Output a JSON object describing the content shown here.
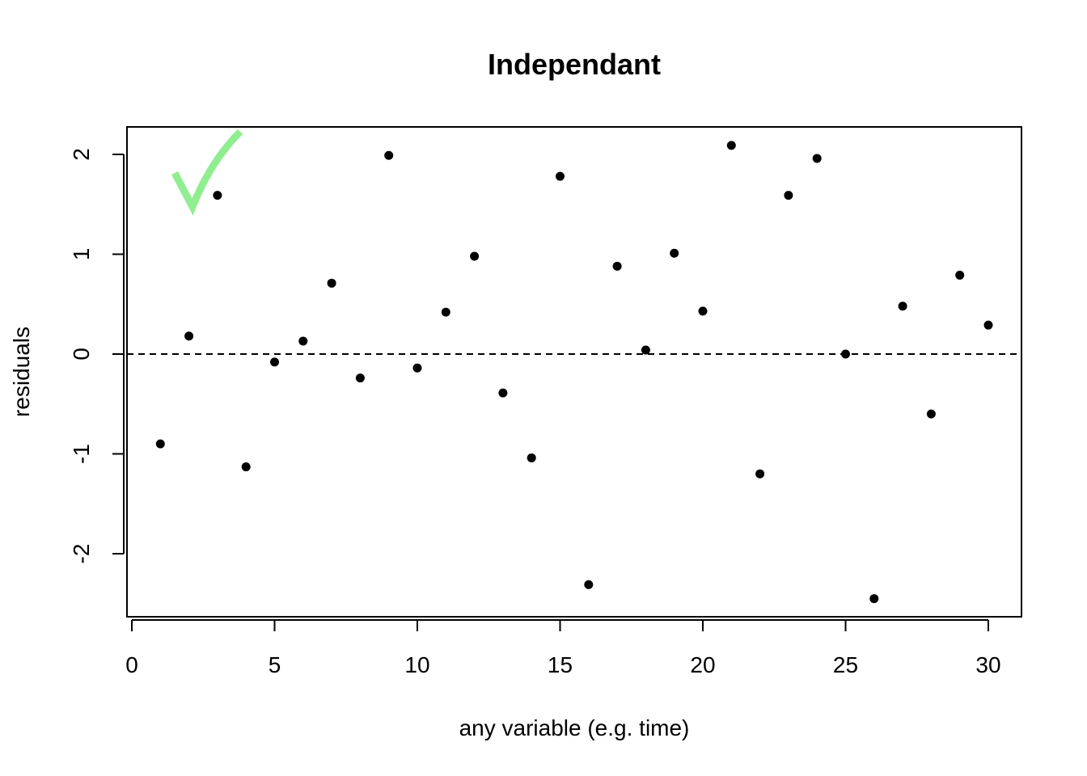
{
  "chart_data": {
    "type": "scatter",
    "title": "Independant",
    "xlabel": "any variable (e.g. time)",
    "ylabel": "residuals",
    "xlim": [
      0,
      30
    ],
    "ylim": [
      -2.5,
      2.2
    ],
    "x_ticks": [
      0,
      5,
      10,
      15,
      20,
      25,
      30
    ],
    "x_tick_labels": [
      "0",
      "5",
      "10",
      "15",
      "20",
      "25",
      "30"
    ],
    "y_ticks": [
      -2,
      -1,
      0,
      1,
      2
    ],
    "y_tick_labels": [
      "-2",
      "-1",
      "0",
      "1",
      "2"
    ],
    "grid": false,
    "reference_line": {
      "y": 0,
      "style": "dashed"
    },
    "series": [
      {
        "x": [
          1,
          2,
          3,
          4,
          5,
          6,
          7,
          8,
          9,
          10,
          11,
          12,
          13,
          14,
          15,
          16,
          17,
          18,
          19,
          20,
          21,
          22,
          23,
          24,
          25,
          26,
          27,
          28,
          29,
          30
        ],
        "y": [
          -0.9,
          0.18,
          1.59,
          -1.13,
          -0.08,
          0.13,
          0.71,
          -0.24,
          1.99,
          -0.14,
          0.42,
          0.98,
          -0.39,
          -1.04,
          1.78,
          -2.31,
          0.88,
          0.04,
          1.01,
          0.43,
          2.09,
          -1.2,
          1.59,
          1.96,
          0.0,
          -2.45,
          0.48,
          -0.6,
          0.79,
          0.29
        ]
      }
    ],
    "annotation": {
      "type": "check-mark",
      "color": "#90EE90",
      "meaning": "independent residuals"
    }
  },
  "colors": {
    "points": "#000000",
    "axes": "#000000",
    "check": "#90EE90"
  }
}
